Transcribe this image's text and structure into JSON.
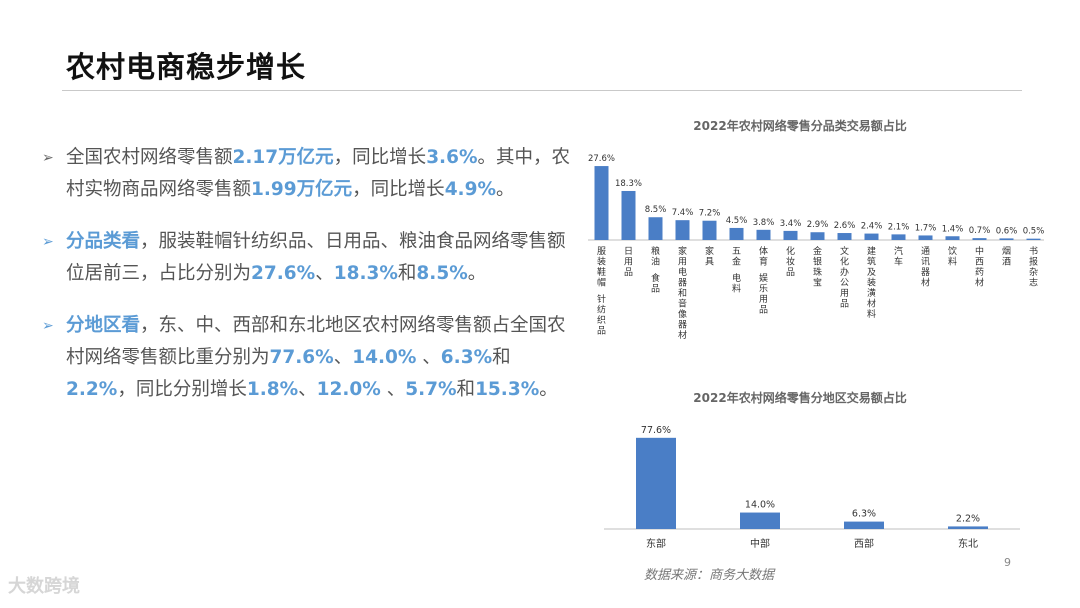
{
  "page": {
    "title": "农村电商稳步增长",
    "page_number": "9",
    "source": "数据来源：商务大数据",
    "watermark": "大数跨境"
  },
  "colors": {
    "bar": "#4a7ec6",
    "highlight": "#5b9bd5"
  },
  "bullets": [
    [
      {
        "t": "全国农村网络零售额"
      },
      {
        "t": "2.17万亿元",
        "hl": true
      },
      {
        "t": "，同比增长"
      },
      {
        "t": "3.6%",
        "hl": true
      },
      {
        "t": "。其中，农村实物商品网络零售额"
      },
      {
        "t": "1.99万亿元",
        "hl": true
      },
      {
        "t": "，同比增长"
      },
      {
        "t": "4.9%",
        "hl": true
      },
      {
        "t": "。"
      }
    ],
    [
      {
        "t": "分品类看",
        "hl": true
      },
      {
        "t": "，服装鞋帽针纺织品、日用品、粮油食品网络零售额位居前三，占比分别为"
      },
      {
        "t": "27.6%",
        "hl": true
      },
      {
        "t": "、"
      },
      {
        "t": "18.3%",
        "hl": true
      },
      {
        "t": "和"
      },
      {
        "t": "8.5%",
        "hl": true
      },
      {
        "t": "。"
      }
    ],
    [
      {
        "t": "分地区看",
        "hl": true
      },
      {
        "t": "，东、中、西部和东北地区农村网络零售额占全国农村网络零售额比重分别为"
      },
      {
        "t": "77.6%",
        "hl": true
      },
      {
        "t": "、"
      },
      {
        "t": "14.0%",
        "hl": true
      },
      {
        "t": " 、"
      },
      {
        "t": "6.3%",
        "hl": true
      },
      {
        "t": "和"
      },
      {
        "t": "2.2%",
        "hl": true
      },
      {
        "t": "，同比分别增长"
      },
      {
        "t": "1.8%",
        "hl": true
      },
      {
        "t": "、"
      },
      {
        "t": "12.0%",
        "hl": true
      },
      {
        "t": " 、"
      },
      {
        "t": "5.7%",
        "hl": true
      },
      {
        "t": "和"
      },
      {
        "t": "15.3%",
        "hl": true
      },
      {
        "t": "。"
      }
    ]
  ],
  "chart_data": [
    {
      "type": "bar",
      "title": "2022年农村网络零售分品类交易额占比",
      "categories": [
        "服装鞋帽 针纺织品",
        "日用品",
        "粮油 食品",
        "家用电器和音像器材",
        "家具",
        "五金 电料",
        "体育 娱乐用品",
        "化妆品",
        "金银珠宝",
        "文化办公用品",
        "建筑及装潢材料",
        "汽车",
        "通讯器材",
        "饮料",
        "中西药材",
        "烟酒",
        "书报杂志"
      ],
      "values": [
        27.6,
        18.3,
        8.5,
        7.4,
        7.2,
        4.5,
        3.8,
        3.4,
        2.9,
        2.6,
        2.4,
        2.1,
        1.7,
        1.4,
        0.7,
        0.6,
        0.5
      ],
      "data_labels": [
        "27.6%",
        "18.3%",
        "8.5%",
        "7.4%",
        "7.2%",
        "4.5%",
        "3.8%",
        "3.4%",
        "2.9%",
        "2.6%",
        "2.4%",
        "2.1%",
        "1.7%",
        "1.4%",
        "0.7%",
        "0.6%",
        "0.5%"
      ],
      "ylim": [
        0,
        28
      ],
      "grid": false,
      "legend": "none"
    },
    {
      "type": "bar",
      "title": "2022年农村网络零售分地区交易额占比",
      "categories": [
        "东部",
        "中部",
        "西部",
        "东北"
      ],
      "values": [
        77.6,
        14.0,
        6.3,
        2.2
      ],
      "data_labels": [
        "77.6%",
        "14.0%",
        "6.3%",
        "2.2%"
      ],
      "ylim": [
        0,
        80
      ],
      "grid": false,
      "legend": "none"
    }
  ]
}
